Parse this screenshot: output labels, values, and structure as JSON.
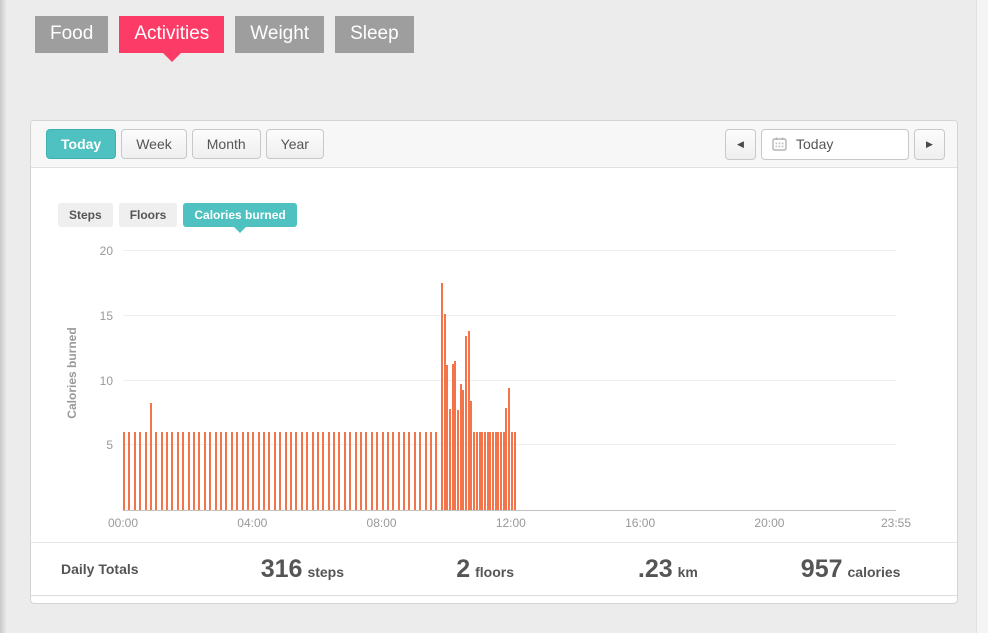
{
  "nav": {
    "tabs": [
      {
        "label": "Food",
        "active": false
      },
      {
        "label": "Activities",
        "active": true
      },
      {
        "label": "Weight",
        "active": false
      },
      {
        "label": "Sleep",
        "active": false
      }
    ]
  },
  "toolbar": {
    "range_tabs": [
      {
        "label": "Today",
        "active": true
      },
      {
        "label": "Week",
        "active": false
      },
      {
        "label": "Month",
        "active": false
      },
      {
        "label": "Year",
        "active": false
      }
    ],
    "date_nav": {
      "prev_glyph": "◀",
      "value": "Today",
      "next_glyph": "▶"
    }
  },
  "chart_tabs": [
    {
      "label": "Steps",
      "active": false
    },
    {
      "label": "Floors",
      "active": false
    },
    {
      "label": "Calories burned",
      "active": true
    }
  ],
  "chart_data": {
    "type": "bar",
    "title": "",
    "ylabel": "Calories burned",
    "xlabel": "",
    "ylim": [
      0,
      20
    ],
    "y_ticks": [
      5,
      10,
      15,
      20
    ],
    "grid": true,
    "legend": "none",
    "bar_color": "#f3734b",
    "x_range_minutes": [
      0,
      1435
    ],
    "x_ticks": [
      {
        "minutes": 0,
        "label": "00:00"
      },
      {
        "minutes": 240,
        "label": "04:00"
      },
      {
        "minutes": 480,
        "label": "08:00"
      },
      {
        "minutes": 720,
        "label": "12:00"
      },
      {
        "minutes": 960,
        "label": "16:00"
      },
      {
        "minutes": 1200,
        "label": "20:00"
      },
      {
        "minutes": 1435,
        "label": "23:55"
      }
    ],
    "bars": [
      [
        0,
        6
      ],
      [
        10,
        6
      ],
      [
        20,
        6
      ],
      [
        30,
        6
      ],
      [
        40,
        6
      ],
      [
        50,
        8.3
      ],
      [
        60,
        6
      ],
      [
        70,
        6
      ],
      [
        80,
        6
      ],
      [
        90,
        6
      ],
      [
        100,
        6
      ],
      [
        110,
        6
      ],
      [
        120,
        6
      ],
      [
        130,
        6
      ],
      [
        140,
        6
      ],
      [
        150,
        6
      ],
      [
        160,
        6
      ],
      [
        170,
        6
      ],
      [
        180,
        6
      ],
      [
        190,
        6
      ],
      [
        200,
        6
      ],
      [
        210,
        6
      ],
      [
        220,
        6
      ],
      [
        230,
        6
      ],
      [
        240,
        6
      ],
      [
        250,
        6
      ],
      [
        260,
        6
      ],
      [
        270,
        6
      ],
      [
        280,
        6
      ],
      [
        290,
        6
      ],
      [
        300,
        6
      ],
      [
        310,
        6
      ],
      [
        320,
        6
      ],
      [
        330,
        6
      ],
      [
        340,
        6
      ],
      [
        350,
        6
      ],
      [
        360,
        6
      ],
      [
        370,
        6
      ],
      [
        380,
        6
      ],
      [
        390,
        6
      ],
      [
        400,
        6
      ],
      [
        410,
        6
      ],
      [
        420,
        6
      ],
      [
        430,
        6
      ],
      [
        440,
        6
      ],
      [
        450,
        6
      ],
      [
        460,
        6
      ],
      [
        470,
        6
      ],
      [
        480,
        6
      ],
      [
        490,
        6
      ],
      [
        500,
        6
      ],
      [
        510,
        6
      ],
      [
        520,
        6
      ],
      [
        530,
        6
      ],
      [
        540,
        6
      ],
      [
        550,
        6
      ],
      [
        560,
        6
      ],
      [
        570,
        6
      ],
      [
        580,
        6
      ],
      [
        590,
        17.5
      ],
      [
        595,
        15.1
      ],
      [
        600,
        11.2
      ],
      [
        605,
        7.8
      ],
      [
        610,
        11.3
      ],
      [
        615,
        11.5
      ],
      [
        620,
        7.7
      ],
      [
        625,
        9.7
      ],
      [
        630,
        9.3
      ],
      [
        635,
        13.4
      ],
      [
        640,
        13.8
      ],
      [
        645,
        8.4
      ],
      [
        650,
        6
      ],
      [
        655,
        6
      ],
      [
        660,
        6
      ],
      [
        665,
        6
      ],
      [
        670,
        6
      ],
      [
        675,
        6
      ],
      [
        680,
        6
      ],
      [
        685,
        6
      ],
      [
        690,
        6
      ],
      [
        695,
        6
      ],
      [
        700,
        6
      ],
      [
        705,
        6
      ],
      [
        710,
        7.9
      ],
      [
        715,
        9.4
      ],
      [
        720,
        6
      ],
      [
        725,
        6
      ]
    ]
  },
  "totals": {
    "label": "Daily Totals",
    "stats": [
      {
        "value": "316",
        "unit": "steps"
      },
      {
        "value": "2",
        "unit": "floors"
      },
      {
        "value": ".23",
        "unit": "km"
      },
      {
        "value": "957",
        "unit": "calories"
      }
    ]
  }
}
